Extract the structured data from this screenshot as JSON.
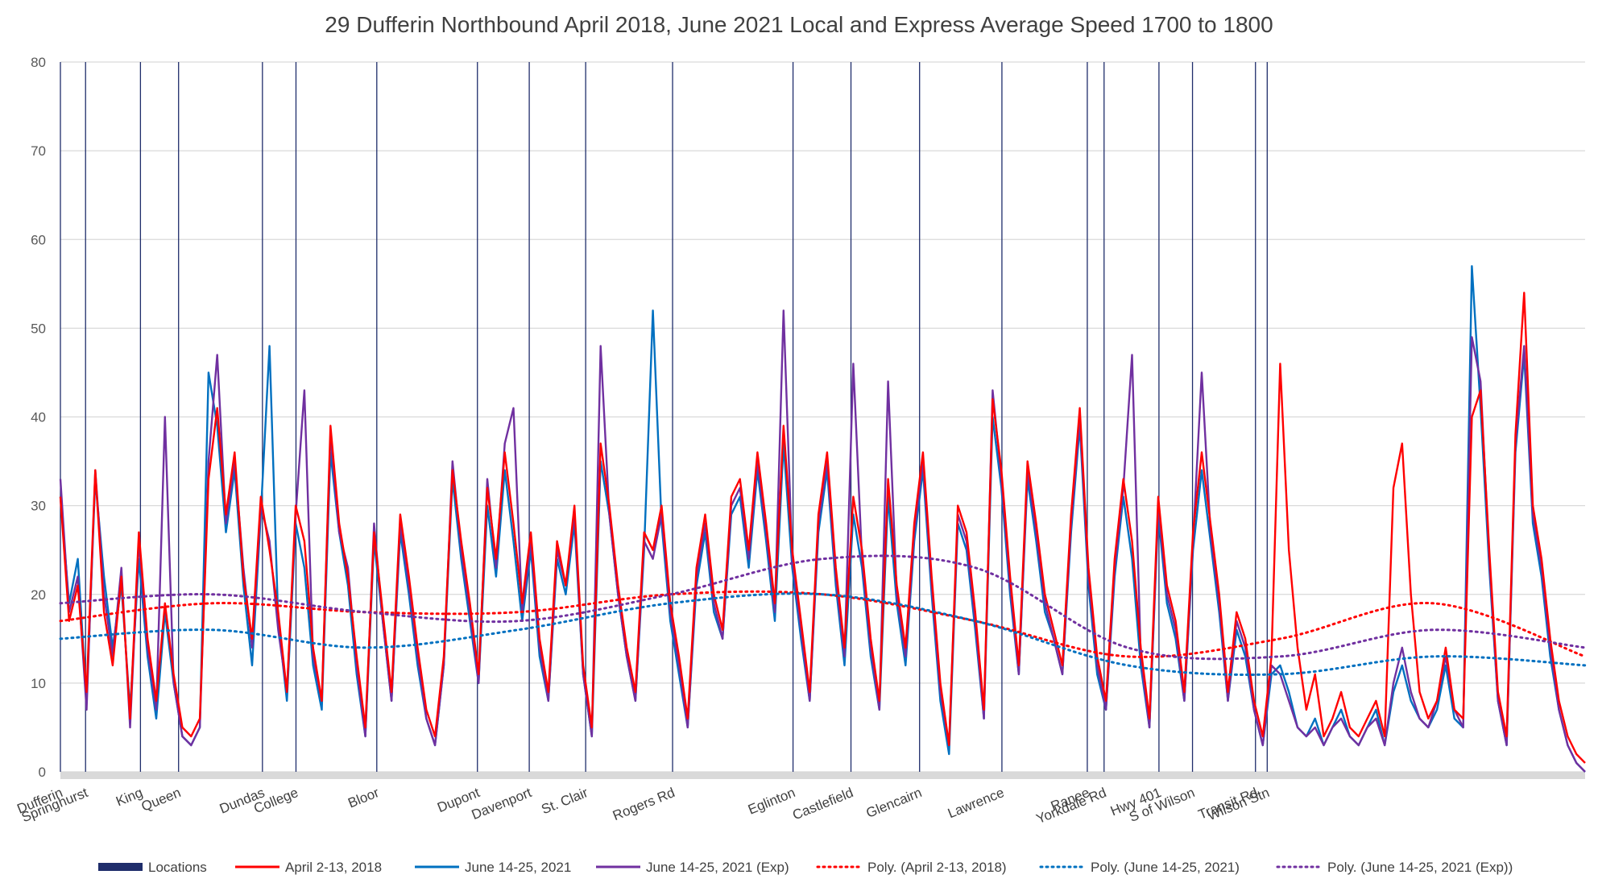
{
  "chart_data": {
    "type": "line",
    "title": "29 Dufferin Northbound April 2018, June 2021 Local and Express Average Speed 1700 to 1800",
    "xlabel": "",
    "ylabel": "",
    "ylim": [
      0,
      80
    ],
    "yticks": [
      0,
      10,
      20,
      30,
      40,
      50,
      60,
      70,
      80
    ],
    "grid": true,
    "legend_position": "bottom",
    "locations": [
      "Dufferin",
      "Springhurst",
      "King",
      "Queen",
      "Dundas",
      "College",
      "Bloor",
      "Dupont",
      "Davenport",
      "St. Clair",
      "Rogers Rd",
      "Eglinton",
      "Castlefield",
      "Glencairn",
      "Lawrence",
      "Ranee",
      "Yorkdale Rd",
      "Hwy 401",
      "S of Wilson",
      "Transit Rd",
      "Wilson Stn"
    ],
    "series": [
      {
        "name": "Locations",
        "color": "#1f2d6b",
        "style": "bar"
      },
      {
        "name": "April 2-13, 2018",
        "color": "#ff0000",
        "style": "solid",
        "values": [
          31,
          17,
          21,
          9,
          34,
          18,
          12,
          22,
          6,
          27,
          15,
          8,
          19,
          11,
          5,
          4,
          6,
          33,
          41,
          29,
          36,
          22,
          15,
          31,
          25,
          18,
          9,
          30,
          26,
          14,
          8,
          39,
          28,
          22,
          13,
          5,
          27,
          18,
          9,
          29,
          22,
          14,
          7,
          4,
          13,
          34,
          26,
          19,
          11,
          32,
          24,
          36,
          28,
          19,
          27,
          15,
          9,
          26,
          21,
          30,
          12,
          5,
          37,
          30,
          21,
          14,
          9,
          27,
          25,
          30,
          19,
          13,
          6,
          23,
          29,
          20,
          16,
          31,
          33,
          25,
          36,
          28,
          19,
          39,
          25,
          17,
          9,
          29,
          36,
          23,
          14,
          31,
          25,
          15,
          8,
          33,
          21,
          14,
          28,
          36,
          22,
          10,
          3,
          30,
          27,
          18,
          7,
          42,
          34,
          22,
          12,
          35,
          28,
          20,
          16,
          12,
          29,
          41,
          23,
          13,
          8,
          24,
          33,
          26,
          14,
          6,
          31,
          21,
          17,
          9,
          27,
          36,
          28,
          20,
          9,
          18,
          15,
          8,
          4,
          13,
          46,
          25,
          14,
          7,
          11,
          4,
          6,
          9,
          5,
          4,
          6,
          8,
          4,
          32,
          37,
          20,
          9,
          6,
          8,
          14,
          7,
          6,
          40,
          43,
          25,
          9,
          4,
          38,
          54,
          30,
          24,
          15,
          8,
          4,
          2,
          1
        ]
      },
      {
        "name": "June 14-25, 2021",
        "color": "#0070c0",
        "style": "solid",
        "values": [
          31,
          19,
          24,
          8,
          33,
          22,
          14,
          21,
          7,
          24,
          13,
          6,
          18,
          10,
          4,
          3,
          5,
          45,
          39,
          27,
          34,
          21,
          12,
          29,
          48,
          17,
          8,
          28,
          23,
          12,
          7,
          36,
          27,
          21,
          11,
          4,
          26,
          17,
          8,
          27,
          20,
          12,
          6,
          3,
          12,
          33,
          24,
          17,
          10,
          30,
          22,
          34,
          26,
          17,
          25,
          13,
          8,
          24,
          20,
          28,
          11,
          4,
          35,
          29,
          20,
          13,
          8,
          25,
          52,
          28,
          17,
          11,
          5,
          21,
          27,
          18,
          15,
          29,
          31,
          23,
          34,
          26,
          17,
          37,
          23,
          15,
          8,
          27,
          34,
          21,
          12,
          29,
          23,
          13,
          7,
          31,
          19,
          12,
          26,
          34,
          20,
          8,
          2,
          28,
          25,
          16,
          6,
          40,
          32,
          20,
          11,
          33,
          26,
          18,
          15,
          11,
          27,
          39,
          21,
          11,
          7,
          22,
          31,
          24,
          12,
          5,
          29,
          19,
          15,
          8,
          25,
          34,
          26,
          18,
          8,
          16,
          13,
          7,
          3,
          11,
          12,
          9,
          5,
          4,
          6,
          3,
          5,
          7,
          4,
          3,
          5,
          7,
          3,
          9,
          12,
          8,
          6,
          5,
          7,
          12,
          6,
          5,
          57,
          41,
          23,
          8,
          3,
          36,
          47,
          28,
          22,
          13,
          7,
          3,
          1,
          0
        ]
      },
      {
        "name": "June 14-25, 2021 (Exp)",
        "color": "#7030a0",
        "style": "solid",
        "values": [
          33,
          18,
          22,
          7,
          34,
          20,
          13,
          23,
          5,
          26,
          14,
          7,
          40,
          10,
          4,
          3,
          5,
          35,
          47,
          28,
          35,
          23,
          14,
          30,
          26,
          16,
          9,
          29,
          43,
          13,
          8,
          38,
          27,
          23,
          12,
          4,
          28,
          17,
          8,
          28,
          21,
          13,
          6,
          3,
          12,
          35,
          25,
          18,
          10,
          33,
          23,
          37,
          41,
          18,
          26,
          14,
          8,
          25,
          21,
          29,
          11,
          4,
          48,
          29,
          20,
          13,
          8,
          26,
          24,
          29,
          18,
          12,
          5,
          22,
          28,
          19,
          15,
          30,
          32,
          24,
          35,
          27,
          18,
          52,
          24,
          16,
          8,
          28,
          35,
          22,
          13,
          46,
          24,
          14,
          7,
          44,
          20,
          13,
          27,
          35,
          21,
          9,
          3,
          29,
          26,
          17,
          6,
          43,
          33,
          21,
          11,
          34,
          27,
          19,
          15,
          11,
          28,
          40,
          22,
          12,
          7,
          23,
          32,
          47,
          13,
          5,
          30,
          20,
          16,
          8,
          26,
          45,
          27,
          19,
          8,
          17,
          14,
          7,
          3,
          12,
          11,
          8,
          5,
          4,
          5,
          3,
          5,
          6,
          4,
          3,
          5,
          6,
          3,
          10,
          14,
          9,
          6,
          5,
          8,
          13,
          7,
          5,
          49,
          44,
          24,
          8,
          3,
          37,
          48,
          29,
          23,
          14,
          7,
          3,
          1,
          0
        ]
      },
      {
        "name": "Poly. (April 2-13, 2018)",
        "color": "#ff0000",
        "style": "dotted",
        "x": [
          0,
          0.1,
          0.2,
          0.3,
          0.4,
          0.5,
          0.6,
          0.7,
          0.8,
          0.9,
          1.0
        ],
        "values": [
          17,
          19,
          18,
          18,
          20,
          20,
          17,
          13,
          15,
          19,
          13
        ]
      },
      {
        "name": "Poly. (June 14-25, 2021)",
        "color": "#0070c0",
        "style": "dotted",
        "x": [
          0,
          0.1,
          0.2,
          0.3,
          0.4,
          0.5,
          0.6,
          0.7,
          0.8,
          0.9,
          1.0
        ],
        "values": [
          15,
          16,
          14,
          16,
          19,
          20,
          17,
          12,
          11,
          13,
          12
        ]
      },
      {
        "name": "Poly. (June 14-25, 2021 (Exp))",
        "color": "#7030a0",
        "style": "dotted",
        "x": [
          0,
          0.1,
          0.2,
          0.3,
          0.4,
          0.5,
          0.6,
          0.7,
          0.8,
          0.9,
          1.0
        ],
        "values": [
          19,
          20,
          18,
          17,
          20,
          24,
          23,
          14,
          13,
          16,
          14
        ]
      }
    ]
  }
}
